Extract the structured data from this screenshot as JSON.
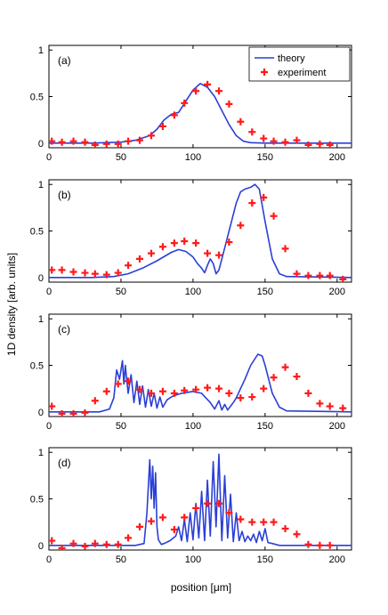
{
  "figure": {
    "ylabel": "1D density [arb. units]",
    "xlabel": "position [μm]"
  },
  "legend": {
    "placement": "top-right",
    "theory_label": "theory",
    "experiment_label": "experiment"
  },
  "colors": {
    "theory": "#2a3fd6",
    "experiment": "#ff1a1a"
  },
  "chart_data": [
    {
      "type": "line",
      "panel": "(a)",
      "xlim": [
        0,
        210
      ],
      "ylim": [
        -0.05,
        1.05
      ],
      "xticks": [
        0,
        50,
        100,
        150,
        200
      ],
      "yticks": [
        {
          "v": 0,
          "t": "0"
        },
        {
          "v": 0.5,
          "t": "0.5"
        },
        {
          "v": 1,
          "t": "1"
        }
      ],
      "legend": true,
      "series": [
        {
          "name": "theory",
          "kind": "line",
          "x": [
            0,
            30,
            50,
            60,
            70,
            75,
            80,
            85,
            90,
            95,
            100,
            105,
            110,
            115,
            120,
            125,
            130,
            135,
            140,
            150,
            210
          ],
          "y": [
            0,
            0,
            0.01,
            0.03,
            0.08,
            0.15,
            0.25,
            0.31,
            0.33,
            0.45,
            0.57,
            0.64,
            0.6,
            0.5,
            0.35,
            0.2,
            0.08,
            0.02,
            0.005,
            0,
            0
          ]
        },
        {
          "name": "experiment",
          "kind": "marker",
          "x": [
            2,
            9,
            17,
            25,
            32,
            40,
            48,
            55,
            63,
            71,
            79,
            87,
            94,
            102,
            110,
            118,
            125,
            133,
            141,
            149,
            156,
            164,
            172,
            180,
            188,
            195
          ],
          "y": [
            0.02,
            0.01,
            0.02,
            0.01,
            -0.02,
            -0.01,
            -0.01,
            0.02,
            0.03,
            0.08,
            0.18,
            0.3,
            0.43,
            0.56,
            0.63,
            0.56,
            0.42,
            0.23,
            0.12,
            0.05,
            0.02,
            0.01,
            0.03,
            -0.02,
            -0.01,
            -0.02
          ]
        }
      ]
    },
    {
      "type": "line",
      "panel": "(b)",
      "xlim": [
        0,
        210
      ],
      "ylim": [
        -0.05,
        1.05
      ],
      "xticks": [
        0,
        50,
        100,
        150,
        200
      ],
      "yticks": [
        {
          "v": 0,
          "t": "0"
        },
        {
          "v": 0.5,
          "t": "0.5"
        },
        {
          "v": 1,
          "t": "1"
        }
      ],
      "legend": false,
      "series": [
        {
          "name": "theory",
          "kind": "line",
          "x": [
            0,
            30,
            45,
            55,
            65,
            75,
            85,
            90,
            95,
            100,
            103,
            106,
            108,
            110,
            112,
            114,
            116,
            118,
            120,
            125,
            130,
            133,
            136,
            140,
            143,
            146,
            150,
            155,
            160,
            165,
            210
          ],
          "y": [
            0,
            0,
            0.01,
            0.04,
            0.1,
            0.18,
            0.27,
            0.3,
            0.28,
            0.22,
            0.15,
            0.1,
            0.05,
            0.13,
            0.2,
            0.15,
            0.04,
            0.08,
            0.2,
            0.5,
            0.8,
            0.92,
            0.95,
            0.97,
            1.0,
            0.95,
            0.6,
            0.2,
            0.04,
            0.01,
            0
          ]
        },
        {
          "name": "experiment",
          "kind": "marker",
          "x": [
            2,
            9,
            17,
            25,
            32,
            40,
            48,
            55,
            63,
            71,
            79,
            87,
            94,
            102,
            110,
            118,
            125,
            133,
            141,
            149,
            156,
            164,
            172,
            180,
            188,
            195,
            204
          ],
          "y": [
            0.08,
            0.08,
            0.06,
            0.05,
            0.04,
            0.03,
            0.05,
            0.13,
            0.2,
            0.26,
            0.33,
            0.37,
            0.39,
            0.37,
            0.26,
            0.24,
            0.38,
            0.56,
            0.8,
            0.86,
            0.66,
            0.31,
            0.04,
            0.02,
            0.02,
            0.02,
            -0.02
          ]
        }
      ]
    },
    {
      "type": "line",
      "panel": "(c)",
      "xlim": [
        0,
        210
      ],
      "ylim": [
        -0.05,
        1.05
      ],
      "xticks": [
        0,
        50,
        100,
        150,
        200
      ],
      "yticks": [
        {
          "v": 0,
          "t": "0"
        },
        {
          "v": 0.5,
          "t": "0.5"
        },
        {
          "v": 1,
          "t": "1"
        }
      ],
      "legend": false,
      "series": [
        {
          "name": "theory",
          "kind": "line",
          "x": [
            0,
            35,
            42,
            45,
            47,
            49,
            51,
            52,
            53,
            55,
            57,
            59,
            61,
            63,
            65,
            67,
            69,
            71,
            73,
            75,
            77,
            79,
            82,
            86,
            92,
            100,
            106,
            112,
            115,
            118,
            120,
            122,
            124,
            126,
            128,
            130,
            133,
            136,
            140,
            145,
            148,
            150,
            155,
            160,
            165,
            210
          ],
          "y": [
            0,
            0,
            0.03,
            0.15,
            0.45,
            0.35,
            0.55,
            0.3,
            0.5,
            0.2,
            0.4,
            0.1,
            0.33,
            0.08,
            0.28,
            0.05,
            0.24,
            0.06,
            0.2,
            0.04,
            0.16,
            0.05,
            0.13,
            0.17,
            0.2,
            0.22,
            0.2,
            0.1,
            0.03,
            0.12,
            0.02,
            0.08,
            0.02,
            0.06,
            0.1,
            0.15,
            0.25,
            0.35,
            0.5,
            0.62,
            0.6,
            0.5,
            0.2,
            0.05,
            0.01,
            0
          ]
        },
        {
          "name": "experiment",
          "kind": "marker",
          "x": [
            2,
            9,
            17,
            25,
            32,
            40,
            48,
            55,
            63,
            71,
            79,
            87,
            94,
            102,
            110,
            118,
            125,
            133,
            141,
            149,
            156,
            164,
            172,
            180,
            188,
            195,
            204
          ],
          "y": [
            0.06,
            -0.02,
            -0.02,
            -0.01,
            0.12,
            0.22,
            0.3,
            0.33,
            0.24,
            0.2,
            0.22,
            0.2,
            0.23,
            0.24,
            0.26,
            0.25,
            0.2,
            0.15,
            0.16,
            0.25,
            0.37,
            0.48,
            0.38,
            0.2,
            0.09,
            0.06,
            0.04
          ]
        }
      ]
    },
    {
      "type": "line",
      "panel": "(d)",
      "xlim": [
        0,
        210
      ],
      "ylim": [
        -0.05,
        1.05
      ],
      "xticks": [
        0,
        50,
        100,
        150,
        200
      ],
      "yticks": [
        {
          "v": 0,
          "t": "0"
        },
        {
          "v": 0.5,
          "t": "0.5"
        },
        {
          "v": 1,
          "t": "1"
        }
      ],
      "legend": false,
      "series": [
        {
          "name": "theory",
          "kind": "line",
          "x": [
            0,
            60,
            66,
            68,
            70,
            71,
            72,
            73,
            74,
            75,
            76,
            78,
            80,
            84,
            88,
            90,
            92,
            94,
            96,
            98,
            100,
            102,
            104,
            106,
            108,
            110,
            112,
            114,
            116,
            118,
            120,
            122,
            124,
            126,
            128,
            130,
            132,
            134,
            136,
            138,
            140,
            142,
            144,
            146,
            148,
            150,
            152,
            155,
            160,
            210
          ],
          "y": [
            0,
            0,
            0.02,
            0.35,
            0.92,
            0.5,
            0.85,
            0.4,
            0.78,
            0.2,
            0.06,
            0.01,
            0.02,
            0.05,
            0.1,
            0.2,
            0.05,
            0.28,
            0.04,
            0.35,
            0.06,
            0.45,
            0.08,
            0.58,
            0.05,
            0.7,
            0.1,
            0.9,
            0.2,
            0.98,
            0.05,
            0.75,
            0.08,
            0.55,
            0.04,
            0.35,
            0.05,
            0.15,
            0.04,
            0.1,
            0.05,
            0.12,
            0.03,
            0.15,
            0.05,
            0.18,
            0.03,
            0.02,
            0,
            0
          ]
        },
        {
          "name": "experiment",
          "kind": "marker",
          "x": [
            2,
            9,
            17,
            25,
            32,
            40,
            48,
            55,
            63,
            71,
            79,
            87,
            94,
            102,
            110,
            118,
            125,
            133,
            141,
            149,
            156,
            164,
            172,
            180,
            188,
            195
          ],
          "y": [
            0.05,
            -0.03,
            0.02,
            -0.01,
            0.02,
            0.01,
            0.01,
            0.08,
            0.2,
            0.26,
            0.3,
            0.17,
            0.3,
            0.4,
            0.45,
            0.45,
            0.35,
            0.28,
            0.25,
            0.25,
            0.25,
            0.18,
            0.12,
            0.01,
            0.0,
            0.0
          ]
        }
      ]
    }
  ]
}
